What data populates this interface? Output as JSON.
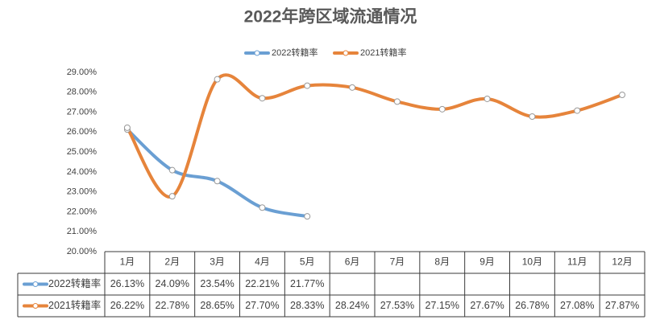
{
  "chart_data": {
    "type": "line",
    "title": "2022年跨区域流通情况",
    "categories": [
      "1月",
      "2月",
      "3月",
      "4月",
      "5月",
      "6月",
      "7月",
      "8月",
      "9月",
      "10月",
      "11月",
      "12月"
    ],
    "series": [
      {
        "name": "2022转籍率",
        "color": "#6a9fd3",
        "values": [
          26.13,
          24.09,
          23.54,
          22.21,
          21.77,
          null,
          null,
          null,
          null,
          null,
          null,
          null
        ],
        "value_labels": [
          "26.13%",
          "24.09%",
          "23.54%",
          "22.21%",
          "21.77%",
          null,
          null,
          null,
          null,
          null,
          null,
          null
        ]
      },
      {
        "name": "2021转籍率",
        "color": "#e6843b",
        "values": [
          26.22,
          22.78,
          28.65,
          27.7,
          28.33,
          28.24,
          27.53,
          27.15,
          27.67,
          26.78,
          27.08,
          27.87
        ],
        "value_labels": [
          "26.22%",
          "22.78%",
          "28.65%",
          "27.70%",
          "28.33%",
          "28.24%",
          "27.53%",
          "27.15%",
          "27.67%",
          "26.78%",
          "27.08%",
          "27.87%"
        ]
      }
    ],
    "ylim": [
      20,
      29
    ],
    "yticks": [
      {
        "value": 20,
        "label": "20.00%"
      },
      {
        "value": 21,
        "label": "21.00%"
      },
      {
        "value": 22,
        "label": "22.00%"
      },
      {
        "value": 23,
        "label": "23.00%"
      },
      {
        "value": 24,
        "label": "24.00%"
      },
      {
        "value": 25,
        "label": "25.00%"
      },
      {
        "value": 26,
        "label": "26.00%"
      },
      {
        "value": 27,
        "label": "27.00%"
      },
      {
        "value": 28,
        "label": "28.00%"
      },
      {
        "value": 29,
        "label": "29.00%"
      }
    ],
    "legend": "top",
    "grid": false
  }
}
